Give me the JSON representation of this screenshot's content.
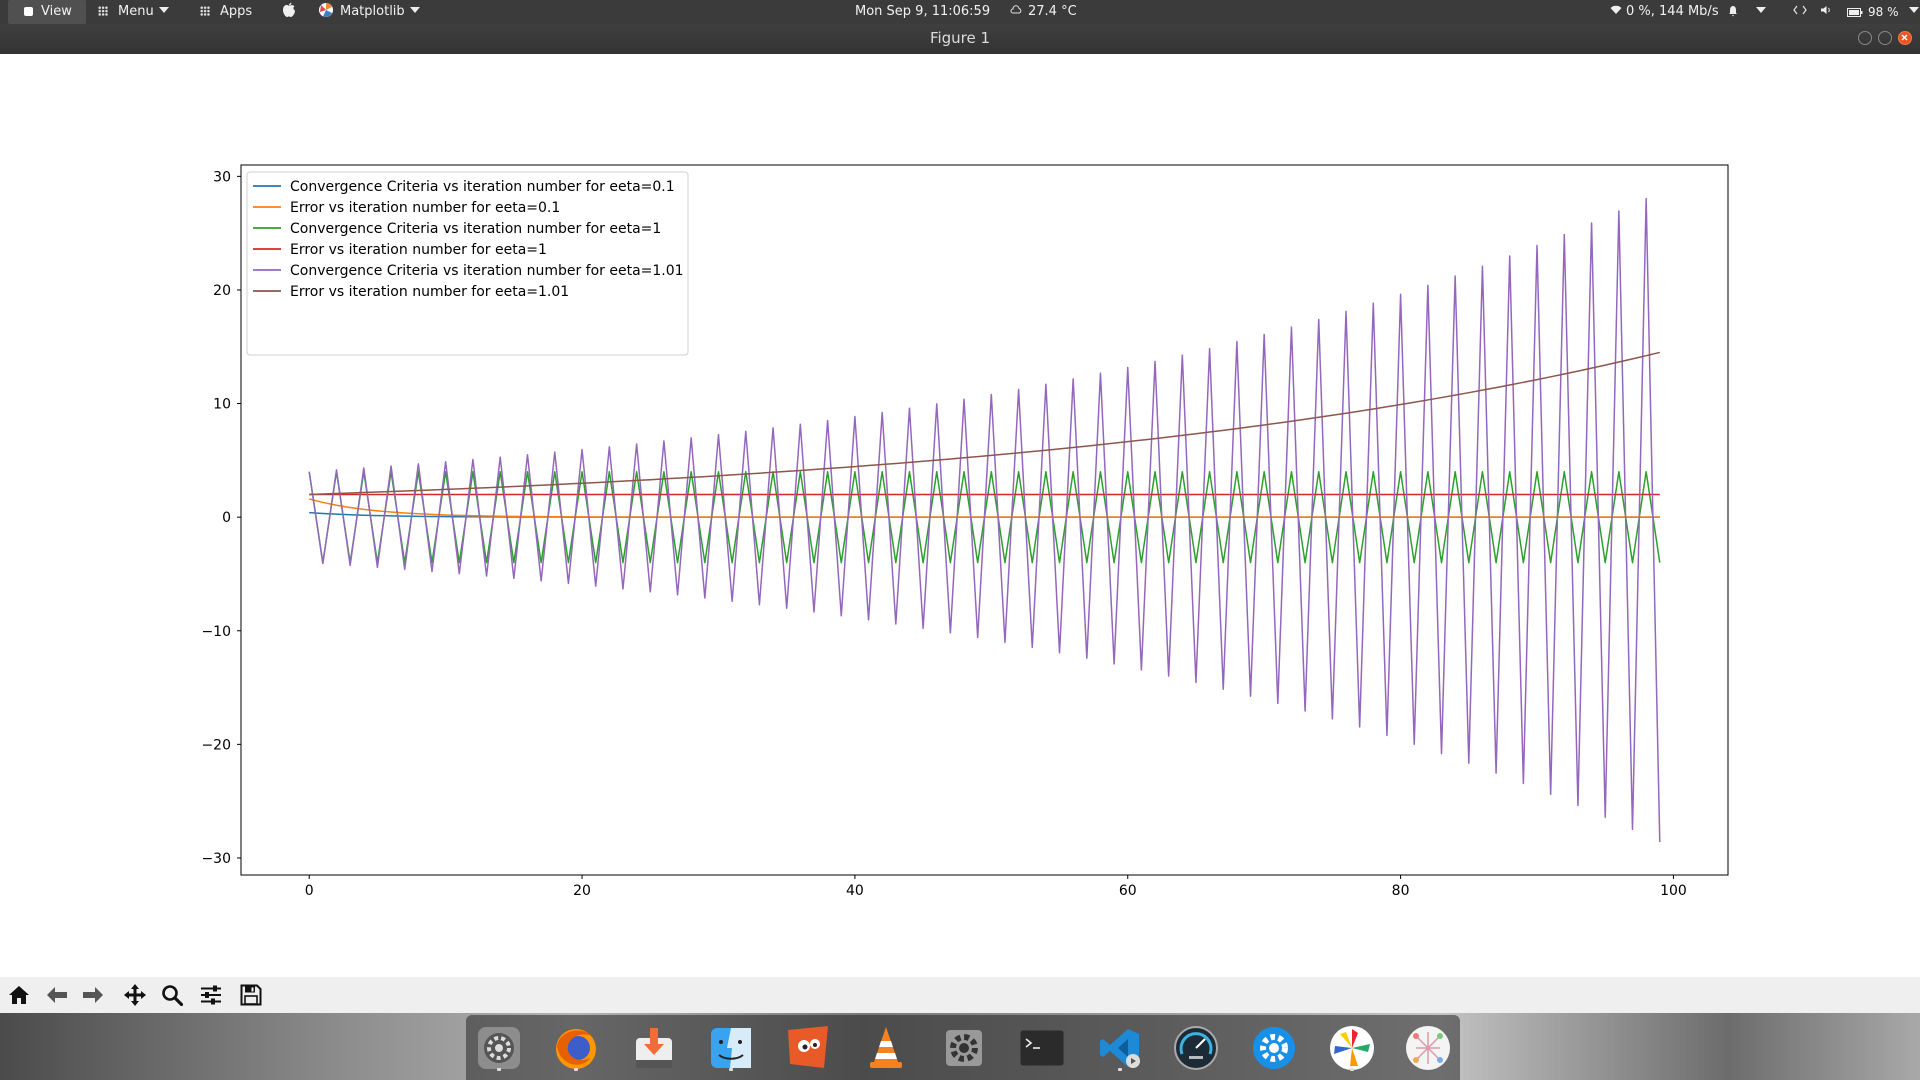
{
  "topbar": {
    "view_label": "View",
    "menu_label": "Menu",
    "apps_label": "Apps",
    "app_name": "Matplotlib",
    "datetime": "Mon Sep  9, 11:06:59",
    "temperature": "27.4 °C",
    "network": "0 %, 144 Mb/s",
    "battery": "98 %"
  },
  "window": {
    "title": "Figure 1"
  },
  "colors": {
    "c0": "#1f77b4",
    "c1": "#ff7f0e",
    "c2": "#2ca02c",
    "c3": "#d62728",
    "c4": "#9467bd",
    "c5": "#8c564b"
  },
  "toolbar": {
    "buttons": [
      "home-icon",
      "back-icon",
      "forward-icon",
      "pan-icon",
      "zoom-icon",
      "configure-subplots-icon",
      "save-icon"
    ]
  },
  "dock": {
    "apps": [
      "system-settings-icon",
      "firefox-icon",
      "installer-icon",
      "finder-icon",
      "gimp-icon",
      "vlc-icon",
      "settings-gear-icon",
      "terminal-icon",
      "vscode-icon",
      "stacer-icon",
      "preferences-icon",
      "pinwheel-icon",
      "network-graph-icon"
    ]
  },
  "chart_data": {
    "type": "line",
    "title": "",
    "xlabel": "",
    "ylabel": "",
    "xlim": [
      -5,
      104
    ],
    "ylim": [
      -31.5,
      31
    ],
    "xticks": [
      0,
      20,
      40,
      60,
      80,
      100
    ],
    "yticks": [
      -30,
      -20,
      -10,
      0,
      10,
      20,
      30
    ],
    "xtick_labels": [
      "0",
      "20",
      "40",
      "60",
      "80",
      "100"
    ],
    "ytick_labels": [
      "−30",
      "−20",
      "−10",
      "0",
      "10",
      "20",
      "30"
    ],
    "legend_position": "upper-left",
    "n_points": 100,
    "series": [
      {
        "name": "Convergence Criteria vs iteration number for eeta=0.1",
        "color": "#1f77b4",
        "shape": "decay",
        "start": 0.4,
        "decay_rate": 0.81,
        "end": 0
      },
      {
        "name": "Error vs iteration number for eeta=0.1",
        "color": "#ff7f0e",
        "shape": "decay",
        "start": 1.6,
        "decay_rate": 0.81,
        "end": 0
      },
      {
        "name": "Convergence Criteria vs iteration number for eeta=1",
        "color": "#2ca02c",
        "shape": "alternating",
        "amplitude": 4,
        "first_value": 4,
        "last_value": -4
      },
      {
        "name": "Error vs iteration number for eeta=1",
        "color": "#d62728",
        "shape": "constant",
        "value": 2
      },
      {
        "name": "Convergence Criteria vs iteration number for eeta=1.01",
        "color": "#9467bd",
        "shape": "alternating_growing",
        "first_value": 4.0,
        "last_value": -28.6,
        "growth_rate": 1.02
      },
      {
        "name": "Error vs iteration number for eeta=1.01",
        "color": "#8c564b",
        "shape": "growing",
        "first_value": 2.0,
        "last_value": 14.5,
        "growth_rate": 1.02
      }
    ]
  }
}
